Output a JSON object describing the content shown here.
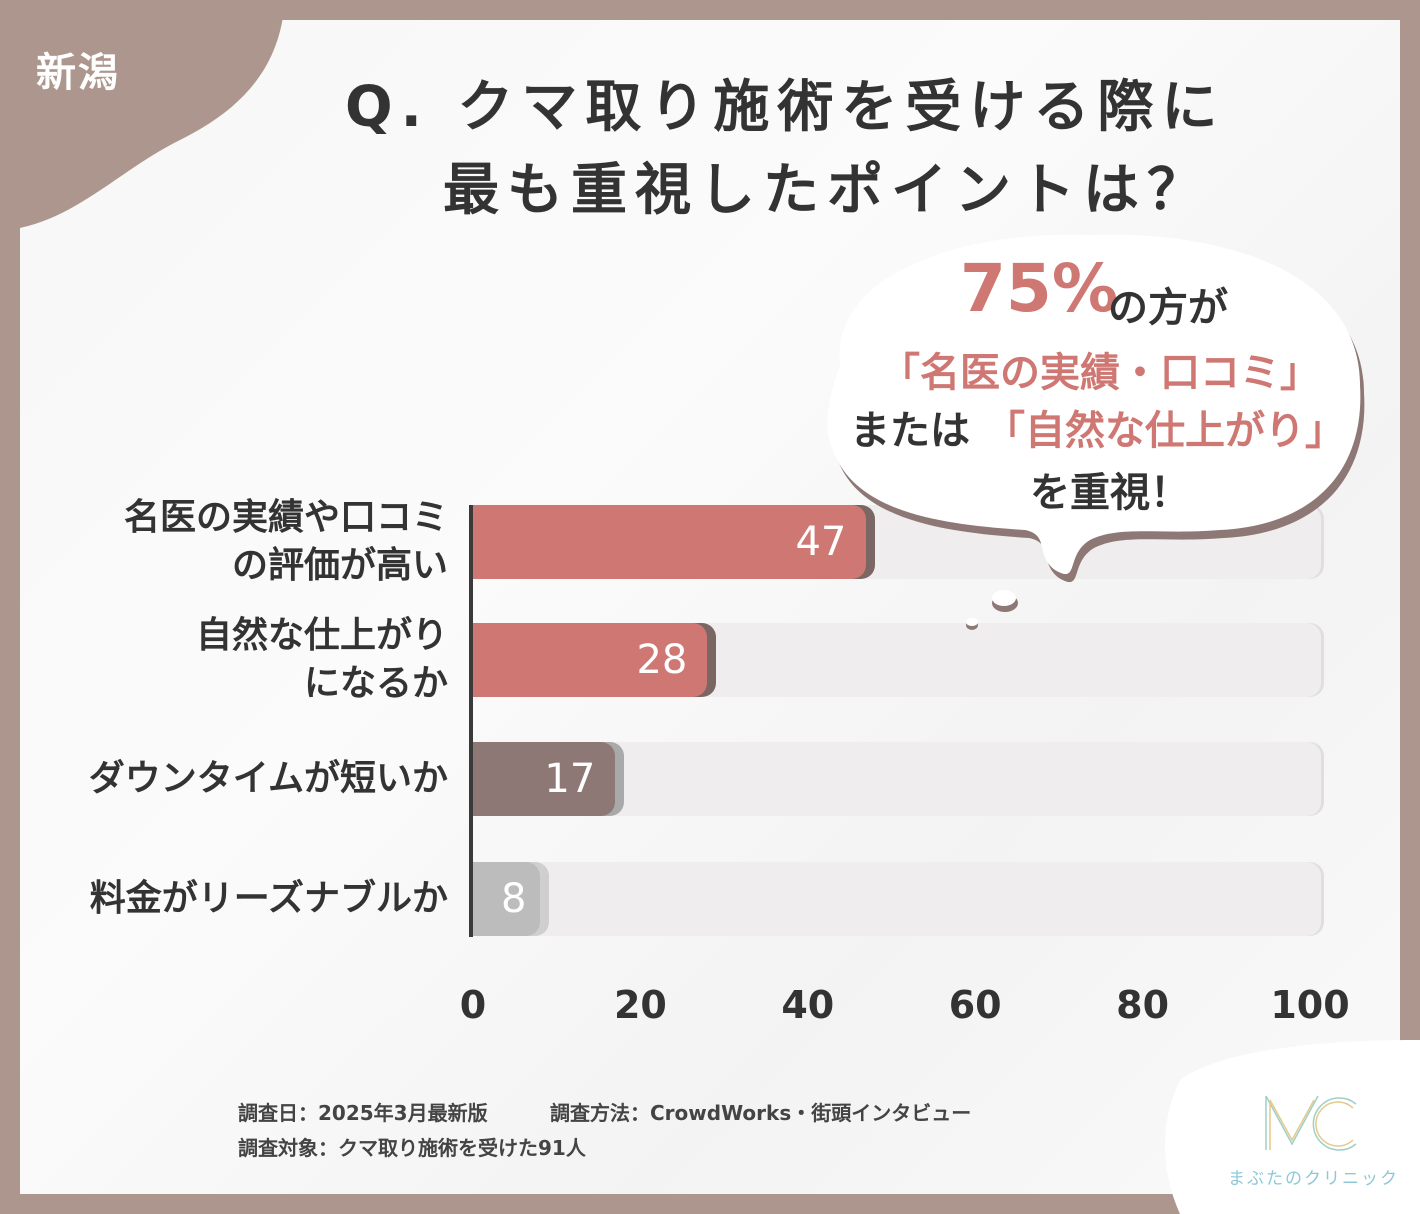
{
  "region": "新潟",
  "title": {
    "line1": "Q. クマ取り施術を受ける際に",
    "line2": "最も重視したポイントは？"
  },
  "callout": {
    "percent": "75%",
    "percent_suffix": "の方が",
    "line2": "「名医の実績・口コミ」",
    "line3_prefix": "または",
    "line3_highlight": "「自然な仕上がり」",
    "line4": "を重視！"
  },
  "chart_data": {
    "type": "bar",
    "orientation": "horizontal",
    "categories": [
      "名医の実績や口コミ\nの評価が高い",
      "自然な仕上がり\nになるか",
      "ダウンタイムが短いか",
      "料金がリーズナブルか"
    ],
    "values": [
      47,
      28,
      17,
      8
    ],
    "xlim": [
      0,
      100
    ],
    "xticks": [
      "0",
      "20",
      "40",
      "60",
      "80",
      "100"
    ],
    "colors": [
      "#cf7772",
      "#cf7772",
      "#8e7875",
      "#bcbcbc"
    ],
    "shadow_colors": [
      "#7a6663",
      "#7a6663",
      "#a9a9a9",
      "#cfcfcf"
    ]
  },
  "footer": {
    "date": "調査日：2025年3月最新版",
    "method": "調査方法：CrowdWorks・街頭インタビュー",
    "target": "調査対象：クマ取り施術を受けた91人"
  },
  "logo": {
    "mark": "MC",
    "name": "まぶたのクリニック"
  }
}
